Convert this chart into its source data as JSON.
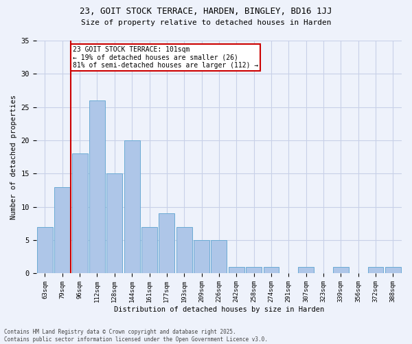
{
  "title1": "23, GOIT STOCK TERRACE, HARDEN, BINGLEY, BD16 1JJ",
  "title2": "Size of property relative to detached houses in Harden",
  "xlabel": "Distribution of detached houses by size in Harden",
  "ylabel": "Number of detached properties",
  "categories": [
    "63sqm",
    "79sqm",
    "96sqm",
    "112sqm",
    "128sqm",
    "144sqm",
    "161sqm",
    "177sqm",
    "193sqm",
    "209sqm",
    "226sqm",
    "242sqm",
    "258sqm",
    "274sqm",
    "291sqm",
    "307sqm",
    "323sqm",
    "339sqm",
    "356sqm",
    "372sqm",
    "388sqm"
  ],
  "values": [
    7,
    13,
    18,
    26,
    15,
    20,
    7,
    9,
    7,
    5,
    5,
    1,
    1,
    1,
    0,
    1,
    0,
    1,
    0,
    1,
    1
  ],
  "bar_color": "#aec6e8",
  "bar_edge_color": "#6aaad4",
  "vline_color": "#cc0000",
  "vline_x_index": 2,
  "annotation_text": "23 GOIT STOCK TERRACE: 101sqm\n← 19% of detached houses are smaller (26)\n81% of semi-detached houses are larger (112) →",
  "annotation_box_facecolor": "white",
  "annotation_box_edgecolor": "#cc0000",
  "ylim": [
    0,
    35
  ],
  "yticks": [
    0,
    5,
    10,
    15,
    20,
    25,
    30,
    35
  ],
  "footer_text": "Contains HM Land Registry data © Crown copyright and database right 2025.\nContains public sector information licensed under the Open Government Licence v3.0.",
  "bg_color": "#eef2fb",
  "grid_color": "#c8d0e8"
}
